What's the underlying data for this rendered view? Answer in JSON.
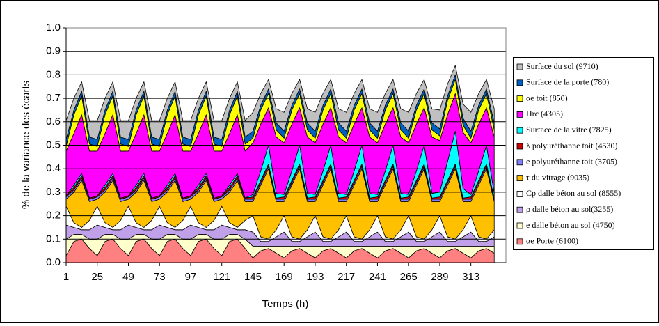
{
  "chart_data": {
    "type": "stacked-area",
    "ylabel": "% de la variance des écarts",
    "xlabel": "Temps (h)",
    "x": [
      1,
      7,
      13,
      19,
      25,
      31,
      37,
      43,
      49,
      55,
      61,
      67,
      73,
      79,
      85,
      91,
      97,
      103,
      109,
      115,
      121,
      127,
      133,
      139,
      145,
      151,
      157,
      163,
      169,
      175,
      181,
      187,
      193,
      199,
      205,
      211,
      217,
      223,
      229,
      235,
      241,
      247,
      253,
      259,
      265,
      271,
      277,
      283,
      289,
      295,
      301,
      307,
      313,
      319,
      325,
      331
    ],
    "xlim": [
      1,
      340
    ],
    "xticks": [
      1,
      25,
      49,
      73,
      97,
      121,
      145,
      169,
      193,
      217,
      241,
      265,
      289,
      313
    ],
    "ylim": [
      0,
      1
    ],
    "yticks": [
      {
        "value": 0,
        "label": "0.0"
      },
      0.1,
      0.2,
      0.3,
      0.4,
      0.5,
      0.6,
      0.7,
      0.8,
      0.9,
      {
        "value": 1,
        "label": "1.0"
      }
    ],
    "grid": true,
    "legend": "right",
    "series": [
      {
        "name": "αe Porte (6100)",
        "color": "#ff8080",
        "values": [
          0.03,
          0.09,
          0.1,
          0.06,
          0.03,
          0.09,
          0.1,
          0.06,
          0.03,
          0.09,
          0.1,
          0.06,
          0.03,
          0.09,
          0.1,
          0.06,
          0.03,
          0.09,
          0.1,
          0.06,
          0.03,
          0.09,
          0.1,
          0.06,
          0.02,
          0.05,
          0.06,
          0.04,
          0.02,
          0.05,
          0.06,
          0.04,
          0.02,
          0.05,
          0.06,
          0.04,
          0.02,
          0.05,
          0.06,
          0.04,
          0.02,
          0.05,
          0.06,
          0.04,
          0.02,
          0.05,
          0.06,
          0.04,
          0.02,
          0.05,
          0.06,
          0.04,
          0.02,
          0.05,
          0.06,
          0.04
        ]
      },
      {
        "name": "e dalle béton au sol (4750)",
        "color": "#ffffcc",
        "values": [
          0.07,
          0.03,
          0.02,
          0.04,
          0.07,
          0.03,
          0.02,
          0.04,
          0.07,
          0.03,
          0.02,
          0.04,
          0.07,
          0.03,
          0.02,
          0.04,
          0.07,
          0.03,
          0.02,
          0.04,
          0.07,
          0.03,
          0.02,
          0.04,
          0.05,
          0.02,
          0.01,
          0.03,
          0.05,
          0.02,
          0.01,
          0.03,
          0.05,
          0.02,
          0.01,
          0.03,
          0.05,
          0.02,
          0.01,
          0.03,
          0.05,
          0.02,
          0.01,
          0.03,
          0.05,
          0.02,
          0.01,
          0.03,
          0.05,
          0.02,
          0.01,
          0.03,
          0.05,
          0.02,
          0.01,
          0.03
        ]
      },
      {
        "name": "ρ dalle béton au sol(3255)",
        "color": "#c0a0e8",
        "values": [
          0.06,
          0.03,
          0.02,
          0.04,
          0.06,
          0.03,
          0.02,
          0.04,
          0.06,
          0.03,
          0.02,
          0.04,
          0.06,
          0.03,
          0.02,
          0.04,
          0.06,
          0.03,
          0.02,
          0.04,
          0.06,
          0.03,
          0.02,
          0.04,
          0.06,
          0.02,
          0.02,
          0.04,
          0.06,
          0.02,
          0.02,
          0.04,
          0.06,
          0.02,
          0.02,
          0.04,
          0.06,
          0.02,
          0.02,
          0.04,
          0.06,
          0.02,
          0.02,
          0.04,
          0.06,
          0.02,
          0.02,
          0.04,
          0.06,
          0.02,
          0.02,
          0.04,
          0.06,
          0.02,
          0.02,
          0.04
        ]
      },
      {
        "name": "Cp dalle béton au sol (8555)",
        "color": "#ffffff",
        "values": [
          0.08,
          0.02,
          0.01,
          0.04,
          0.08,
          0.02,
          0.01,
          0.04,
          0.08,
          0.02,
          0.01,
          0.04,
          0.08,
          0.02,
          0.01,
          0.04,
          0.08,
          0.02,
          0.01,
          0.04,
          0.08,
          0.02,
          0.01,
          0.04,
          0.07,
          0.02,
          0.01,
          0.03,
          0.07,
          0.02,
          0.01,
          0.03,
          0.07,
          0.02,
          0.01,
          0.03,
          0.07,
          0.02,
          0.01,
          0.03,
          0.07,
          0.02,
          0.01,
          0.03,
          0.07,
          0.02,
          0.01,
          0.03,
          0.07,
          0.02,
          0.01,
          0.03,
          0.07,
          0.02,
          0.01,
          0.03
        ]
      },
      {
        "name": "τ du vitrage (9035)",
        "color": "#ffc000",
        "values": [
          0.03,
          0.13,
          0.2,
          0.08,
          0.03,
          0.13,
          0.2,
          0.08,
          0.03,
          0.13,
          0.2,
          0.08,
          0.03,
          0.13,
          0.2,
          0.08,
          0.03,
          0.13,
          0.2,
          0.08,
          0.03,
          0.13,
          0.2,
          0.08,
          0.06,
          0.22,
          0.3,
          0.12,
          0.06,
          0.22,
          0.3,
          0.12,
          0.06,
          0.22,
          0.3,
          0.12,
          0.06,
          0.22,
          0.3,
          0.12,
          0.06,
          0.22,
          0.3,
          0.12,
          0.06,
          0.22,
          0.3,
          0.12,
          0.06,
          0.22,
          0.3,
          0.12,
          0.06,
          0.22,
          0.3,
          0.12
        ]
      },
      {
        "name": "e polyuréthanne toit (3705)",
        "color": "#8080ff",
        "values": [
          0.01,
          0.01,
          0.01,
          0.01,
          0.01,
          0.01,
          0.01,
          0.01,
          0.01,
          0.01,
          0.01,
          0.01,
          0.01,
          0.01,
          0.01,
          0.01,
          0.01,
          0.01,
          0.01,
          0.01,
          0.01,
          0.01,
          0.01,
          0.01,
          0.01,
          0.01,
          0.01,
          0.01,
          0.01,
          0.01,
          0.01,
          0.01,
          0.01,
          0.01,
          0.01,
          0.01,
          0.01,
          0.01,
          0.01,
          0.01,
          0.01,
          0.01,
          0.01,
          0.01,
          0.01,
          0.01,
          0.01,
          0.01,
          0.01,
          0.01,
          0.01,
          0.01,
          0.01,
          0.01,
          0.01,
          0.01
        ]
      },
      {
        "name": "λ polyuréthanne toit (4530)",
        "color": "#cc0000",
        "values": [
          0.005,
          0.01,
          0.01,
          0.005,
          0.005,
          0.01,
          0.01,
          0.005,
          0.005,
          0.01,
          0.01,
          0.005,
          0.005,
          0.01,
          0.01,
          0.005,
          0.005,
          0.01,
          0.01,
          0.005,
          0.005,
          0.01,
          0.01,
          0.005,
          0.01,
          0.01,
          0.01,
          0.005,
          0.01,
          0.01,
          0.01,
          0.005,
          0.01,
          0.01,
          0.01,
          0.005,
          0.01,
          0.01,
          0.01,
          0.005,
          0.01,
          0.01,
          0.01,
          0.005,
          0.01,
          0.01,
          0.01,
          0.005,
          0.01,
          0.01,
          0.01,
          0.005,
          0.01,
          0.01,
          0.01,
          0.005
        ]
      },
      {
        "name": "Surface de la vitre (7825)",
        "color": "#00ffff",
        "values": [
          0,
          0.01,
          0.01,
          0,
          0,
          0.01,
          0.01,
          0,
          0,
          0.01,
          0.01,
          0,
          0,
          0.01,
          0.01,
          0,
          0,
          0.01,
          0.01,
          0,
          0,
          0.01,
          0.01,
          0,
          0.01,
          0.04,
          0.08,
          0.02,
          0.01,
          0.04,
          0.08,
          0.02,
          0.01,
          0.04,
          0.08,
          0.02,
          0.01,
          0.04,
          0.08,
          0.02,
          0.01,
          0.04,
          0.08,
          0.02,
          0.01,
          0.04,
          0.08,
          0.02,
          0.02,
          0.08,
          0.14,
          0.04,
          0.01,
          0.04,
          0.08,
          0.02
        ]
      },
      {
        "name": "Hrc (4305)",
        "color": "#ff00ff",
        "values": [
          0.19,
          0.22,
          0.25,
          0.2,
          0.19,
          0.22,
          0.25,
          0.2,
          0.19,
          0.22,
          0.25,
          0.2,
          0.19,
          0.22,
          0.25,
          0.2,
          0.19,
          0.22,
          0.25,
          0.2,
          0.19,
          0.22,
          0.25,
          0.2,
          0.22,
          0.2,
          0.16,
          0.24,
          0.22,
          0.2,
          0.16,
          0.24,
          0.22,
          0.2,
          0.16,
          0.24,
          0.22,
          0.2,
          0.16,
          0.24,
          0.22,
          0.2,
          0.16,
          0.24,
          0.22,
          0.2,
          0.16,
          0.24,
          0.22,
          0.2,
          0.16,
          0.24,
          0.22,
          0.2,
          0.16,
          0.24
        ]
      },
      {
        "name": "αe toit (850)",
        "color": "#ffff00",
        "values": [
          0.02,
          0.08,
          0.08,
          0.03,
          0.02,
          0.08,
          0.08,
          0.03,
          0.02,
          0.08,
          0.08,
          0.03,
          0.02,
          0.08,
          0.08,
          0.03,
          0.02,
          0.08,
          0.08,
          0.03,
          0.02,
          0.08,
          0.08,
          0.03,
          0.02,
          0.06,
          0.06,
          0.03,
          0.02,
          0.06,
          0.06,
          0.03,
          0.02,
          0.06,
          0.06,
          0.03,
          0.02,
          0.06,
          0.06,
          0.03,
          0.02,
          0.06,
          0.06,
          0.03,
          0.02,
          0.06,
          0.06,
          0.03,
          0.02,
          0.06,
          0.06,
          0.03,
          0.02,
          0.06,
          0.06,
          0.03
        ]
      },
      {
        "name": "Surface de la porte (780)",
        "color": "#0060c0",
        "values": [
          0.03,
          0.02,
          0.02,
          0.03,
          0.03,
          0.02,
          0.02,
          0.03,
          0.03,
          0.02,
          0.02,
          0.03,
          0.03,
          0.02,
          0.02,
          0.03,
          0.03,
          0.02,
          0.02,
          0.03,
          0.03,
          0.02,
          0.02,
          0.03,
          0.03,
          0.02,
          0.02,
          0.03,
          0.03,
          0.02,
          0.02,
          0.03,
          0.03,
          0.02,
          0.02,
          0.03,
          0.03,
          0.02,
          0.02,
          0.03,
          0.03,
          0.02,
          0.02,
          0.03,
          0.03,
          0.02,
          0.02,
          0.03,
          0.03,
          0.02,
          0.02,
          0.03,
          0.03,
          0.02,
          0.02,
          0.03
        ]
      },
      {
        "name": "Surface du sol (9710)",
        "color": "#c0c0c0",
        "values": [
          0.08,
          0.05,
          0.04,
          0.07,
          0.08,
          0.05,
          0.04,
          0.07,
          0.08,
          0.05,
          0.04,
          0.07,
          0.08,
          0.05,
          0.04,
          0.07,
          0.08,
          0.05,
          0.04,
          0.07,
          0.08,
          0.05,
          0.04,
          0.07,
          0.08,
          0.05,
          0.04,
          0.06,
          0.08,
          0.05,
          0.04,
          0.06,
          0.08,
          0.05,
          0.04,
          0.06,
          0.08,
          0.05,
          0.04,
          0.06,
          0.08,
          0.05,
          0.04,
          0.06,
          0.08,
          0.05,
          0.04,
          0.06,
          0.08,
          0.05,
          0.04,
          0.06,
          0.08,
          0.05,
          0.04,
          0.06
        ]
      }
    ]
  }
}
